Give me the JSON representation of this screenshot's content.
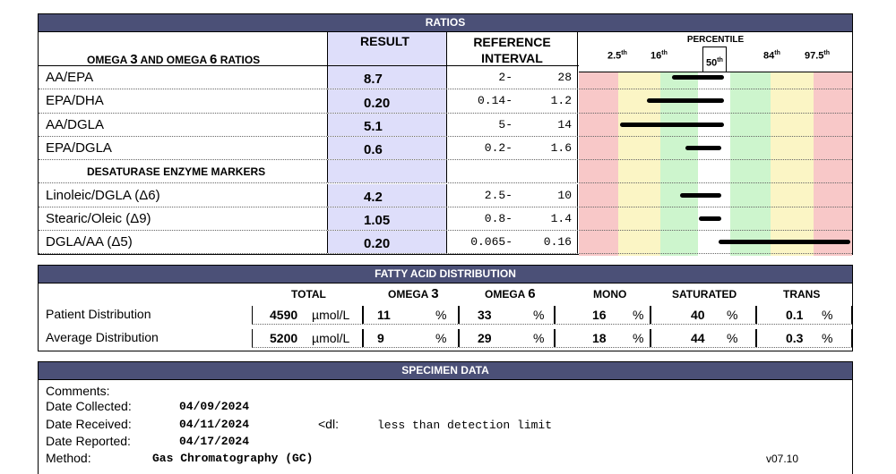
{
  "ratios": {
    "title": "RATIOS",
    "col_label_pre": "OMEGA ",
    "col_label_3": "3",
    "col_label_mid": " AND OMEGA ",
    "col_label_6": "6",
    "col_label_post": " RATIOS",
    "col_result": "RESULT",
    "col_ref_1": "REFERENCE",
    "col_ref_2": "INTERVAL",
    "percentile_title": "PERCENTILE",
    "ticks": [
      {
        "label": "2.5",
        "sup": "th"
      },
      {
        "label": "16",
        "sup": "th"
      },
      {
        "label": "50",
        "sup": "th"
      },
      {
        "label": "84",
        "sup": "th"
      },
      {
        "label": "97.5",
        "sup": "th"
      }
    ],
    "desaturase_heading": "DESATURASE ENZYME MARKERS",
    "rows": [
      {
        "label": "AA/EPA",
        "result": "8.7",
        "ref_lo": "2-",
        "ref_hi": "28",
        "bar": [
          0.34,
          0.53
        ]
      },
      {
        "label": "EPA/DHA",
        "result": "0.20",
        "ref_lo": "0.14-",
        "ref_hi": "1.2",
        "bar": [
          0.25,
          0.53
        ]
      },
      {
        "label": "AA/DGLA",
        "result": "5.1",
        "ref_lo": "5-",
        "ref_hi": "14",
        "bar": [
          0.15,
          0.53
        ]
      },
      {
        "label": "EPA/DGLA",
        "result": "0.6",
        "ref_lo": "0.2-",
        "ref_hi": "1.6",
        "bar": [
          0.39,
          0.52
        ]
      },
      {
        "label": "Linoleic/DGLA  (Δ6)",
        "result": "4.2",
        "ref_lo": "2.5-",
        "ref_hi": "10",
        "bar": [
          0.37,
          0.52
        ]
      },
      {
        "label": "Stearic/Oleic  (Δ9)",
        "result": "1.05",
        "ref_lo": "0.8-",
        "ref_hi": "1.4",
        "bar": [
          0.44,
          0.52
        ]
      },
      {
        "label": "DGLA/AA  (Δ5)",
        "result": "0.20",
        "ref_lo": "0.065-",
        "ref_hi": "0.16",
        "bar": [
          0.51,
          1.0
        ]
      }
    ],
    "band_colors": [
      "#f8c8c8",
      "#fbf5c5",
      "#cdf5cd",
      "#ffffff",
      "#cdf5cd",
      "#fbf5c5",
      "#f8c8c8"
    ]
  },
  "fatty": {
    "title": "FATTY ACID DISTRIBUTION",
    "cols": {
      "total": "TOTAL",
      "omega3_pre": "OMEGA ",
      "omega3_num": "3",
      "omega6_pre": "OMEGA ",
      "omega6_num": "6",
      "mono": "MONO",
      "saturated": "SATURATED",
      "trans": "TRANS"
    },
    "unit": "µmol/L",
    "pct": "%",
    "patient": {
      "label": "Patient Distribution",
      "total": "4590",
      "omega3": "11",
      "omega6": "33",
      "mono": "16",
      "saturated": "40",
      "trans": "0.1"
    },
    "average": {
      "label": "Average Distribution",
      "total": "5200",
      "omega3": "9",
      "omega6": "29",
      "mono": "18",
      "saturated": "44",
      "trans": "0.3"
    }
  },
  "specimen": {
    "title": "SPECIMEN DATA",
    "comments_label": "Comments:",
    "collected_label": "Date Collected:",
    "collected": "04/09/2024",
    "received_label": "Date Received:",
    "received": "04/11/2024",
    "reported_label": "Date Reported:",
    "reported": "04/17/2024",
    "method_label": "Method:",
    "method": "Gas Chromatography (GC)",
    "dl_code": "<dl:",
    "dl_text": "less than detection limit",
    "version": "v07.10"
  }
}
